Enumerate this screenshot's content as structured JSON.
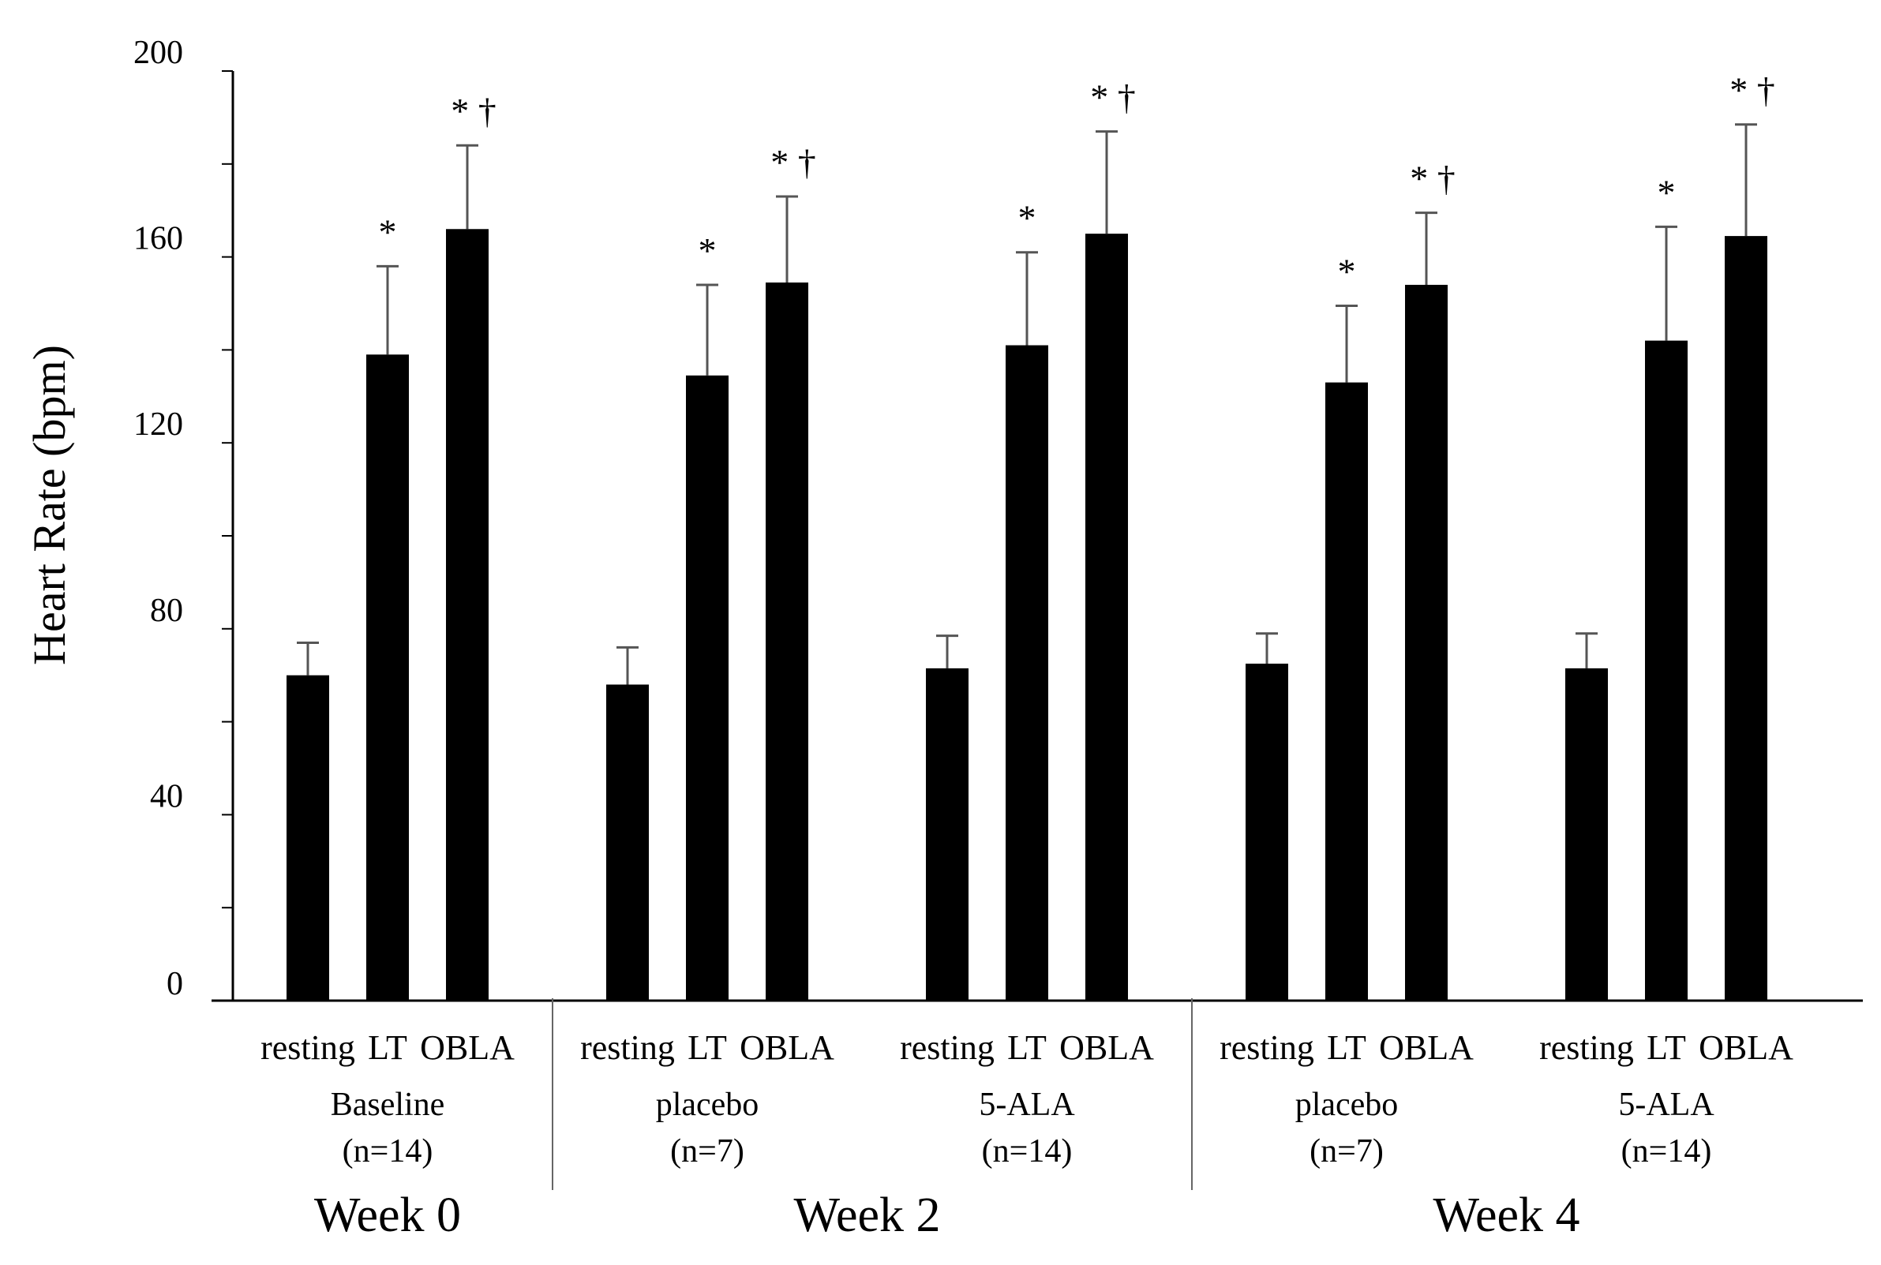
{
  "chart_data": {
    "type": "bar",
    "title": "",
    "ylabel": "Heart Rate (bpm)",
    "xlabel": "",
    "ylim": [
      0,
      200
    ],
    "y_ticks": [
      "0",
      "40",
      "80",
      "120",
      "160",
      "200"
    ],
    "colors": {
      "bar": "#000000",
      "error_bar": "#555555",
      "axis": "#000000"
    },
    "weeks": [
      {
        "label": "Week 0",
        "group_indices": [
          0
        ]
      },
      {
        "label": "Week 2",
        "group_indices": [
          1,
          2
        ]
      },
      {
        "label": "Week 4",
        "group_indices": [
          3,
          4
        ]
      }
    ],
    "groups": [
      {
        "name": "Baseline",
        "n": "(n=14)",
        "bars": [
          {
            "label": "resting",
            "value": 70,
            "error": 7,
            "annotation": ""
          },
          {
            "label": "LT",
            "value": 139,
            "error": 19,
            "annotation": "*"
          },
          {
            "label": "OBLA",
            "value": 166,
            "error": 18,
            "annotation": "* †"
          }
        ]
      },
      {
        "name": "placebo",
        "n": "(n=7)",
        "bars": [
          {
            "label": "resting",
            "value": 68,
            "error": 8,
            "annotation": ""
          },
          {
            "label": "LT",
            "value": 134.5,
            "error": 19.5,
            "annotation": "*"
          },
          {
            "label": "OBLA",
            "value": 154.5,
            "error": 18.5,
            "annotation": "* †"
          }
        ]
      },
      {
        "name": "5-ALA",
        "n": "(n=14)",
        "bars": [
          {
            "label": "resting",
            "value": 71.5,
            "error": 7,
            "annotation": ""
          },
          {
            "label": "LT",
            "value": 141,
            "error": 20,
            "annotation": "*"
          },
          {
            "label": "OBLA",
            "value": 165,
            "error": 22,
            "annotation": "* †"
          }
        ]
      },
      {
        "name": "placebo",
        "n": "(n=7)",
        "bars": [
          {
            "label": "resting",
            "value": 72.5,
            "error": 6.5,
            "annotation": ""
          },
          {
            "label": "LT",
            "value": 133,
            "error": 16.5,
            "annotation": "*"
          },
          {
            "label": "OBLA",
            "value": 154,
            "error": 15.5,
            "annotation": "* †"
          }
        ]
      },
      {
        "name": "5-ALA",
        "n": "(n=14)",
        "bars": [
          {
            "label": "resting",
            "value": 71.5,
            "error": 7.5,
            "annotation": ""
          },
          {
            "label": "LT",
            "value": 142,
            "error": 24.5,
            "annotation": "*"
          },
          {
            "label": "OBLA",
            "value": 164.5,
            "error": 24,
            "annotation": "* †"
          }
        ]
      }
    ]
  }
}
